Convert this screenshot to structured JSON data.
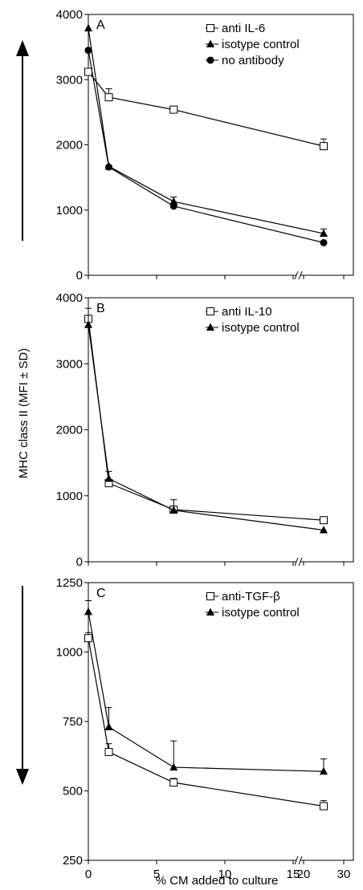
{
  "figure": {
    "ylabel": "MHC class II (MFI ± SD)",
    "xlabel": "% CM added to culture"
  },
  "chart_data": [
    {
      "type": "line",
      "panel_label": "A",
      "x": [
        0,
        1.5,
        6.25,
        25
      ],
      "xticks": [
        "0",
        "5",
        "10",
        "15",
        "20",
        "30"
      ],
      "yticks": [
        "0",
        "1000",
        "2000",
        "3000",
        "4000"
      ],
      "ylim": [
        0,
        4000
      ],
      "axis_break": "between 15 and 20",
      "legend_position": "top-right",
      "series": [
        {
          "name": "anti IL-6",
          "marker": "open-square",
          "values": [
            3120,
            2730,
            2540,
            1980
          ],
          "errors": [
            0,
            130,
            0,
            110
          ]
        },
        {
          "name": "isotype control",
          "marker": "filled-triangle",
          "values": [
            3790,
            1670,
            1130,
            640
          ],
          "errors": [
            0,
            0,
            70,
            70
          ]
        },
        {
          "name": "no antibody",
          "marker": "filled-circle",
          "values": [
            3450,
            1660,
            1060,
            500
          ],
          "errors": [
            0,
            0,
            0,
            0
          ]
        }
      ]
    },
    {
      "type": "line",
      "panel_label": "B",
      "x": [
        0,
        1.5,
        6.25,
        25
      ],
      "yticks": [
        "0",
        "1000",
        "2000",
        "3000",
        "4000"
      ],
      "ylim": [
        0,
        4000
      ],
      "legend_position": "top-right",
      "series": [
        {
          "name": "anti IL-10",
          "marker": "open-square",
          "values": [
            3680,
            1190,
            790,
            630
          ],
          "errors": [
            0,
            0,
            0,
            0
          ]
        },
        {
          "name": "isotype control",
          "marker": "filled-triangle",
          "values": [
            3590,
            1260,
            780,
            480
          ],
          "errors": [
            250,
            110,
            160,
            0
          ]
        }
      ]
    },
    {
      "type": "line",
      "panel_label": "C",
      "x": [
        0,
        1.5,
        6.25,
        25
      ],
      "yticks": [
        "250",
        "500",
        "750",
        "1000",
        "1250"
      ],
      "ylim": [
        250,
        1250
      ],
      "legend_position": "top-right",
      "series": [
        {
          "name": "anti-TGF-β",
          "marker": "open-square",
          "values": [
            1050,
            640,
            530,
            445
          ],
          "errors": [
            20,
            30,
            15,
            20
          ]
        },
        {
          "name": "isotype control",
          "marker": "filled-triangle",
          "values": [
            1145,
            730,
            585,
            570
          ],
          "errors": [
            40,
            70,
            95,
            45
          ]
        }
      ]
    }
  ]
}
